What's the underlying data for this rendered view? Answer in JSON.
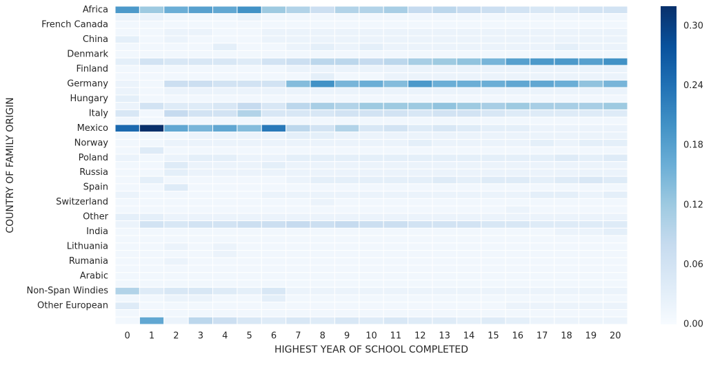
{
  "chart_data": {
    "type": "heatmap",
    "title": "",
    "xlabel": "HIGHEST YEAR OF SCHOOL COMPLETED",
    "ylabel": "COUNTRY OF FAMILY ORIGIN",
    "x_categories": [
      "0",
      "1",
      "2",
      "3",
      "4",
      "5",
      "6",
      "7",
      "8",
      "9",
      "10",
      "11",
      "12",
      "13",
      "14",
      "15",
      "16",
      "17",
      "18",
      "19",
      "20"
    ],
    "y_tick_labels": [
      {
        "row": 0,
        "label": "Africa"
      },
      {
        "row": 2,
        "label": "French Canada"
      },
      {
        "row": 4,
        "label": "China"
      },
      {
        "row": 6,
        "label": "Denmark"
      },
      {
        "row": 8,
        "label": "Finland"
      },
      {
        "row": 10,
        "label": "Germany"
      },
      {
        "row": 12,
        "label": "Hungary"
      },
      {
        "row": 14,
        "label": "Italy"
      },
      {
        "row": 16,
        "label": "Mexico"
      },
      {
        "row": 18,
        "label": "Norway"
      },
      {
        "row": 20,
        "label": "Poland"
      },
      {
        "row": 22,
        "label": "Russia"
      },
      {
        "row": 24,
        "label": "Spain"
      },
      {
        "row": 26,
        "label": "Switzerland"
      },
      {
        "row": 28,
        "label": "Other"
      },
      {
        "row": 30,
        "label": "India"
      },
      {
        "row": 32,
        "label": "Lithuania"
      },
      {
        "row": 34,
        "label": "Rumania"
      },
      {
        "row": 36,
        "label": "Arabic"
      },
      {
        "row": 38,
        "label": "Non-Span Windies"
      },
      {
        "row": 40,
        "label": "Other European"
      }
    ],
    "values": [
      [
        0.19,
        0.12,
        0.16,
        0.18,
        0.17,
        0.2,
        0.12,
        0.1,
        0.07,
        0.1,
        0.1,
        0.11,
        0.08,
        0.09,
        0.08,
        0.07,
        0.06,
        0.05,
        0.05,
        0.06,
        0.06
      ],
      [
        0.02,
        0.02,
        0.01,
        0.01,
        0.01,
        0.02,
        0.01,
        0.01,
        0.01,
        0.01,
        0.01,
        0.01,
        0.01,
        0.01,
        0.01,
        0.01,
        0.01,
        0.01,
        0.01,
        0.01,
        0.01
      ],
      [
        0.01,
        0.01,
        0.01,
        0.01,
        0.01,
        0.01,
        0.01,
        0.01,
        0.01,
        0.01,
        0.01,
        0.01,
        0.01,
        0.01,
        0.01,
        0.01,
        0.01,
        0.01,
        0.01,
        0.01,
        0.01
      ],
      [
        0.01,
        0.01,
        0.02,
        0.02,
        0.01,
        0.01,
        0.02,
        0.02,
        0.02,
        0.02,
        0.02,
        0.02,
        0.02,
        0.02,
        0.02,
        0.02,
        0.02,
        0.02,
        0.02,
        0.02,
        0.02
      ],
      [
        0.03,
        0.01,
        0.02,
        0.01,
        0.01,
        0.01,
        0.02,
        0.02,
        0.02,
        0.02,
        0.02,
        0.02,
        0.02,
        0.02,
        0.02,
        0.02,
        0.02,
        0.02,
        0.02,
        0.02,
        0.02
      ],
      [
        0.01,
        0.01,
        0.01,
        0.01,
        0.03,
        0.01,
        0.01,
        0.02,
        0.03,
        0.02,
        0.03,
        0.02,
        0.02,
        0.02,
        0.02,
        0.02,
        0.02,
        0.02,
        0.03,
        0.02,
        0.02
      ],
      [
        0.01,
        0.01,
        0.01,
        0.01,
        0.01,
        0.01,
        0.01,
        0.01,
        0.01,
        0.01,
        0.01,
        0.01,
        0.01,
        0.01,
        0.01,
        0.01,
        0.01,
        0.01,
        0.01,
        0.01,
        0.01
      ],
      [
        0.03,
        0.06,
        0.05,
        0.05,
        0.05,
        0.04,
        0.06,
        0.07,
        0.09,
        0.09,
        0.08,
        0.09,
        0.11,
        0.12,
        0.13,
        0.15,
        0.18,
        0.19,
        0.19,
        0.18,
        0.2
      ],
      [
        0.01,
        0.01,
        0.01,
        0.01,
        0.01,
        0.01,
        0.01,
        0.02,
        0.02,
        0.02,
        0.02,
        0.02,
        0.02,
        0.02,
        0.02,
        0.02,
        0.02,
        0.02,
        0.02,
        0.02,
        0.02
      ],
      [
        0.01,
        0.01,
        0.01,
        0.01,
        0.01,
        0.01,
        0.01,
        0.01,
        0.03,
        0.01,
        0.01,
        0.02,
        0.02,
        0.02,
        0.02,
        0.02,
        0.02,
        0.02,
        0.02,
        0.02,
        0.02
      ],
      [
        0.02,
        0.01,
        0.07,
        0.07,
        0.06,
        0.06,
        0.06,
        0.14,
        0.2,
        0.15,
        0.16,
        0.14,
        0.19,
        0.16,
        0.16,
        0.16,
        0.17,
        0.17,
        0.16,
        0.13,
        0.15
      ],
      [
        0.02,
        0.01,
        0.02,
        0.02,
        0.02,
        0.02,
        0.02,
        0.02,
        0.02,
        0.02,
        0.02,
        0.02,
        0.02,
        0.02,
        0.02,
        0.02,
        0.02,
        0.02,
        0.02,
        0.02,
        0.02
      ],
      [
        0.03,
        0.01,
        0.01,
        0.01,
        0.01,
        0.01,
        0.01,
        0.01,
        0.01,
        0.01,
        0.01,
        0.01,
        0.01,
        0.01,
        0.01,
        0.01,
        0.01,
        0.01,
        0.01,
        0.01,
        0.01
      ],
      [
        0.02,
        0.06,
        0.04,
        0.04,
        0.05,
        0.08,
        0.05,
        0.09,
        0.11,
        0.1,
        0.12,
        0.12,
        0.12,
        0.13,
        0.12,
        0.11,
        0.12,
        0.11,
        0.11,
        0.11,
        0.12
      ],
      [
        0.05,
        0.01,
        0.08,
        0.06,
        0.06,
        0.1,
        0.05,
        0.05,
        0.05,
        0.06,
        0.06,
        0.06,
        0.05,
        0.06,
        0.06,
        0.05,
        0.04,
        0.04,
        0.04,
        0.04,
        0.04
      ],
      [
        0.01,
        0.01,
        0.01,
        0.01,
        0.01,
        0.01,
        0.01,
        0.01,
        0.01,
        0.01,
        0.01,
        0.01,
        0.01,
        0.01,
        0.01,
        0.01,
        0.01,
        0.01,
        0.01,
        0.01,
        0.01
      ],
      [
        0.25,
        0.32,
        0.17,
        0.15,
        0.17,
        0.14,
        0.23,
        0.09,
        0.06,
        0.1,
        0.05,
        0.06,
        0.04,
        0.05,
        0.04,
        0.03,
        0.03,
        0.02,
        0.02,
        0.02,
        0.02
      ],
      [
        0.01,
        0.01,
        0.01,
        0.02,
        0.02,
        0.02,
        0.02,
        0.03,
        0.03,
        0.02,
        0.02,
        0.02,
        0.02,
        0.02,
        0.02,
        0.02,
        0.02,
        0.02,
        0.02,
        0.02,
        0.02
      ],
      [
        0.01,
        0.01,
        0.02,
        0.02,
        0.02,
        0.02,
        0.02,
        0.02,
        0.02,
        0.02,
        0.02,
        0.02,
        0.03,
        0.02,
        0.02,
        0.02,
        0.02,
        0.03,
        0.02,
        0.03,
        0.03
      ],
      [
        0.01,
        0.04,
        0.01,
        0.01,
        0.01,
        0.01,
        0.01,
        0.01,
        0.01,
        0.01,
        0.01,
        0.01,
        0.01,
        0.01,
        0.01,
        0.01,
        0.01,
        0.01,
        0.01,
        0.01,
        0.01
      ],
      [
        0.02,
        0.01,
        0.02,
        0.03,
        0.03,
        0.02,
        0.02,
        0.03,
        0.03,
        0.03,
        0.03,
        0.03,
        0.03,
        0.03,
        0.03,
        0.03,
        0.03,
        0.03,
        0.04,
        0.03,
        0.04
      ],
      [
        0.01,
        0.01,
        0.04,
        0.02,
        0.02,
        0.02,
        0.03,
        0.02,
        0.02,
        0.02,
        0.02,
        0.02,
        0.02,
        0.02,
        0.02,
        0.02,
        0.02,
        0.02,
        0.02,
        0.02,
        0.02
      ],
      [
        0.01,
        0.01,
        0.03,
        0.02,
        0.02,
        0.02,
        0.02,
        0.02,
        0.02,
        0.02,
        0.02,
        0.02,
        0.02,
        0.02,
        0.02,
        0.02,
        0.02,
        0.02,
        0.02,
        0.02,
        0.02
      ],
      [
        0.01,
        0.03,
        0.01,
        0.01,
        0.01,
        0.01,
        0.01,
        0.02,
        0.03,
        0.03,
        0.03,
        0.03,
        0.03,
        0.04,
        0.03,
        0.04,
        0.04,
        0.03,
        0.04,
        0.05,
        0.04
      ],
      [
        0.01,
        0.01,
        0.04,
        0.01,
        0.01,
        0.01,
        0.01,
        0.01,
        0.01,
        0.01,
        0.01,
        0.01,
        0.01,
        0.01,
        0.01,
        0.01,
        0.01,
        0.01,
        0.01,
        0.01,
        0.01
      ],
      [
        0.02,
        0.01,
        0.01,
        0.01,
        0.01,
        0.01,
        0.02,
        0.02,
        0.02,
        0.02,
        0.02,
        0.02,
        0.02,
        0.02,
        0.02,
        0.02,
        0.02,
        0.03,
        0.03,
        0.02,
        0.03
      ],
      [
        0.01,
        0.01,
        0.01,
        0.01,
        0.01,
        0.01,
        0.01,
        0.01,
        0.02,
        0.01,
        0.01,
        0.01,
        0.01,
        0.01,
        0.01,
        0.01,
        0.01,
        0.01,
        0.01,
        0.01,
        0.01
      ],
      [
        0.01,
        0.01,
        0.01,
        0.01,
        0.01,
        0.01,
        0.01,
        0.01,
        0.01,
        0.01,
        0.01,
        0.01,
        0.01,
        0.01,
        0.01,
        0.01,
        0.02,
        0.01,
        0.01,
        0.01,
        0.01
      ],
      [
        0.03,
        0.03,
        0.02,
        0.02,
        0.02,
        0.02,
        0.02,
        0.02,
        0.02,
        0.02,
        0.02,
        0.02,
        0.02,
        0.02,
        0.02,
        0.02,
        0.02,
        0.02,
        0.02,
        0.02,
        0.02
      ],
      [
        0.02,
        0.06,
        0.05,
        0.06,
        0.06,
        0.07,
        0.07,
        0.08,
        0.07,
        0.08,
        0.07,
        0.07,
        0.06,
        0.06,
        0.06,
        0.05,
        0.05,
        0.04,
        0.04,
        0.04,
        0.04
      ],
      [
        0.01,
        0.01,
        0.01,
        0.01,
        0.01,
        0.01,
        0.01,
        0.01,
        0.01,
        0.01,
        0.01,
        0.01,
        0.01,
        0.01,
        0.01,
        0.01,
        0.01,
        0.01,
        0.02,
        0.02,
        0.03
      ],
      [
        0.01,
        0.01,
        0.01,
        0.01,
        0.01,
        0.01,
        0.01,
        0.01,
        0.01,
        0.01,
        0.01,
        0.01,
        0.01,
        0.01,
        0.01,
        0.01,
        0.01,
        0.01,
        0.01,
        0.01,
        0.01
      ],
      [
        0.01,
        0.01,
        0.02,
        0.01,
        0.02,
        0.01,
        0.01,
        0.01,
        0.01,
        0.01,
        0.01,
        0.01,
        0.01,
        0.01,
        0.01,
        0.01,
        0.01,
        0.01,
        0.01,
        0.01,
        0.01
      ],
      [
        0.01,
        0.01,
        0.01,
        0.01,
        0.02,
        0.01,
        0.01,
        0.01,
        0.01,
        0.01,
        0.01,
        0.01,
        0.01,
        0.01,
        0.01,
        0.01,
        0.01,
        0.01,
        0.01,
        0.01,
        0.01
      ],
      [
        0.01,
        0.01,
        0.02,
        0.01,
        0.01,
        0.01,
        0.01,
        0.01,
        0.01,
        0.01,
        0.01,
        0.01,
        0.01,
        0.01,
        0.01,
        0.01,
        0.01,
        0.01,
        0.01,
        0.01,
        0.01
      ],
      [
        0.01,
        0.01,
        0.01,
        0.01,
        0.01,
        0.01,
        0.01,
        0.01,
        0.01,
        0.01,
        0.01,
        0.01,
        0.01,
        0.01,
        0.01,
        0.01,
        0.01,
        0.01,
        0.01,
        0.01,
        0.01
      ],
      [
        0.01,
        0.01,
        0.01,
        0.01,
        0.01,
        0.01,
        0.01,
        0.01,
        0.01,
        0.01,
        0.01,
        0.01,
        0.01,
        0.01,
        0.01,
        0.01,
        0.01,
        0.01,
        0.01,
        0.01,
        0.01
      ],
      [
        0.01,
        0.01,
        0.01,
        0.01,
        0.01,
        0.01,
        0.01,
        0.01,
        0.01,
        0.01,
        0.01,
        0.01,
        0.01,
        0.01,
        0.01,
        0.01,
        0.01,
        0.01,
        0.01,
        0.01,
        0.01
      ],
      [
        0.1,
        0.04,
        0.05,
        0.05,
        0.04,
        0.03,
        0.05,
        0.02,
        0.02,
        0.02,
        0.02,
        0.02,
        0.02,
        0.02,
        0.02,
        0.02,
        0.02,
        0.02,
        0.02,
        0.02,
        0.02
      ],
      [
        0.01,
        0.01,
        0.02,
        0.02,
        0.01,
        0.01,
        0.03,
        0.01,
        0.01,
        0.01,
        0.01,
        0.01,
        0.01,
        0.01,
        0.01,
        0.01,
        0.01,
        0.01,
        0.01,
        0.01,
        0.01
      ],
      [
        0.04,
        0.01,
        0.01,
        0.01,
        0.01,
        0.01,
        0.01,
        0.01,
        0.01,
        0.01,
        0.01,
        0.01,
        0.01,
        0.01,
        0.01,
        0.01,
        0.02,
        0.02,
        0.02,
        0.02,
        0.02
      ],
      [
        0.01,
        0.01,
        0.01,
        0.01,
        0.01,
        0.01,
        0.01,
        0.01,
        0.01,
        0.01,
        0.01,
        0.01,
        0.01,
        0.01,
        0.01,
        0.01,
        0.01,
        0.01,
        0.01,
        0.01,
        0.01
      ],
      [
        0.01,
        0.17,
        0.02,
        0.09,
        0.07,
        0.05,
        0.04,
        0.05,
        0.04,
        0.05,
        0.04,
        0.05,
        0.04,
        0.04,
        0.03,
        0.04,
        0.03,
        0.02,
        0.02,
        0.02,
        0.02
      ]
    ],
    "colorbar": {
      "min": 0,
      "max": 0.32,
      "ticks": [
        "0.00",
        "0.06",
        "0.12",
        "0.18",
        "0.24",
        "0.30"
      ],
      "colormap": "Blues",
      "low_color": "#f7fbff",
      "high_color": "#08306b"
    },
    "grid": false,
    "legend": "colorbar-right"
  }
}
